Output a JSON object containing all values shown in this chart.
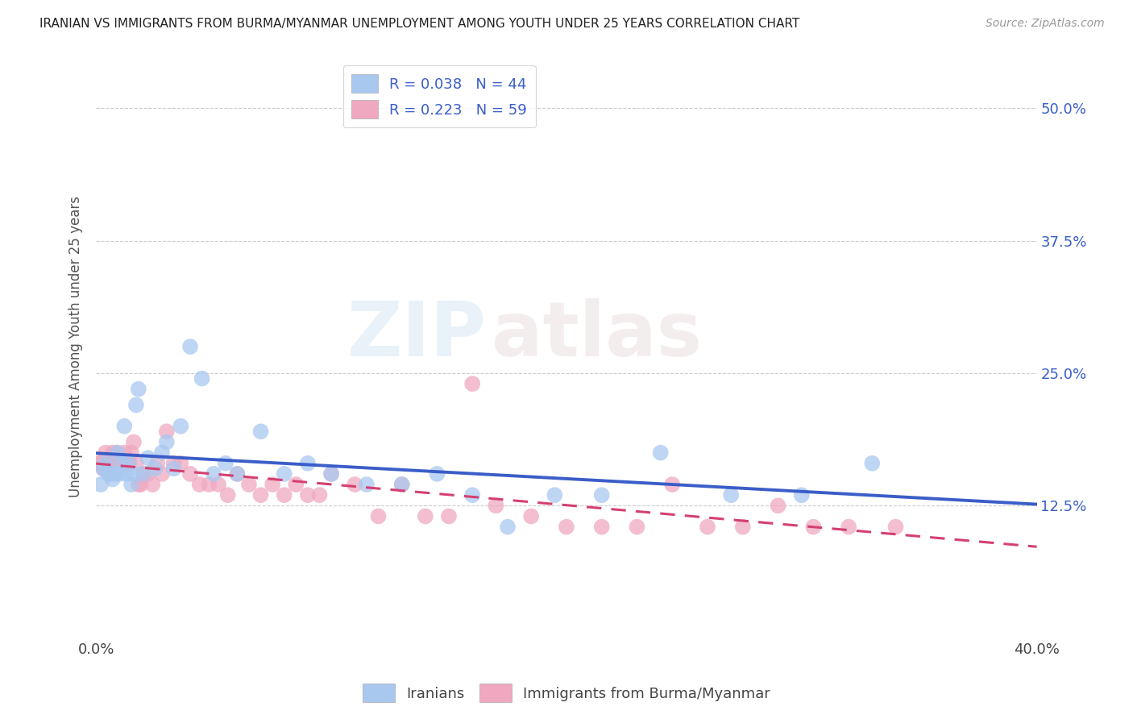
{
  "title": "IRANIAN VS IMMIGRANTS FROM BURMA/MYANMAR UNEMPLOYMENT AMONG YOUTH UNDER 25 YEARS CORRELATION CHART",
  "source": "Source: ZipAtlas.com",
  "ylabel": "Unemployment Among Youth under 25 years",
  "xlim": [
    0.0,
    0.4
  ],
  "ylim": [
    0.0,
    0.55
  ],
  "x_ticks": [
    0.0,
    0.1,
    0.2,
    0.3,
    0.4
  ],
  "x_tick_labels": [
    "0.0%",
    "",
    "",
    "",
    "40.0%"
  ],
  "y_ticks": [
    0.0,
    0.125,
    0.25,
    0.375,
    0.5
  ],
  "y_tick_labels_right": [
    "",
    "12.5%",
    "25.0%",
    "37.5%",
    "50.0%"
  ],
  "grid_color": "#cccccc",
  "background_color": "#ffffff",
  "iranians_color": "#a8c8f0",
  "burma_color": "#f0a8c0",
  "iranians_line_color": "#3a5dc8",
  "burma_line_color": "#d44070",
  "R_iranians": 0.038,
  "N_iranians": 44,
  "R_burma": 0.223,
  "N_burma": 59,
  "legend_label_iranians": "Iranians",
  "legend_label_burma": "Immigrants from Burma/Myanmar",
  "watermark_zip": "ZIP",
  "watermark_atlas": "atlas",
  "iranians_x": [
    0.002,
    0.003,
    0.004,
    0.005,
    0.006,
    0.007,
    0.008,
    0.009,
    0.01,
    0.011,
    0.012,
    0.013,
    0.014,
    0.015,
    0.016,
    0.017,
    0.018,
    0.02,
    0.022,
    0.025,
    0.028,
    0.03,
    0.033,
    0.036,
    0.04,
    0.045,
    0.05,
    0.055,
    0.06,
    0.07,
    0.08,
    0.09,
    0.1,
    0.115,
    0.13,
    0.145,
    0.16,
    0.175,
    0.195,
    0.215,
    0.24,
    0.27,
    0.3,
    0.33
  ],
  "iranians_y": [
    0.145,
    0.16,
    0.165,
    0.155,
    0.155,
    0.15,
    0.155,
    0.175,
    0.155,
    0.165,
    0.2,
    0.155,
    0.165,
    0.145,
    0.155,
    0.22,
    0.235,
    0.155,
    0.17,
    0.16,
    0.175,
    0.185,
    0.16,
    0.2,
    0.275,
    0.245,
    0.155,
    0.165,
    0.155,
    0.195,
    0.155,
    0.165,
    0.155,
    0.145,
    0.145,
    0.155,
    0.135,
    0.105,
    0.135,
    0.135,
    0.175,
    0.135,
    0.135,
    0.165
  ],
  "burma_x": [
    0.001,
    0.002,
    0.003,
    0.004,
    0.005,
    0.006,
    0.007,
    0.008,
    0.009,
    0.01,
    0.011,
    0.012,
    0.013,
    0.014,
    0.015,
    0.016,
    0.017,
    0.018,
    0.019,
    0.02,
    0.022,
    0.024,
    0.026,
    0.028,
    0.03,
    0.033,
    0.036,
    0.04,
    0.044,
    0.048,
    0.052,
    0.056,
    0.06,
    0.065,
    0.07,
    0.075,
    0.08,
    0.085,
    0.09,
    0.095,
    0.1,
    0.11,
    0.12,
    0.13,
    0.14,
    0.15,
    0.16,
    0.17,
    0.185,
    0.2,
    0.215,
    0.23,
    0.245,
    0.26,
    0.275,
    0.29,
    0.305,
    0.32,
    0.34
  ],
  "burma_y": [
    0.165,
    0.165,
    0.16,
    0.175,
    0.165,
    0.165,
    0.175,
    0.165,
    0.175,
    0.165,
    0.165,
    0.175,
    0.165,
    0.165,
    0.175,
    0.185,
    0.165,
    0.145,
    0.145,
    0.155,
    0.155,
    0.145,
    0.165,
    0.155,
    0.195,
    0.165,
    0.165,
    0.155,
    0.145,
    0.145,
    0.145,
    0.135,
    0.155,
    0.145,
    0.135,
    0.145,
    0.135,
    0.145,
    0.135,
    0.135,
    0.155,
    0.145,
    0.115,
    0.145,
    0.115,
    0.115,
    0.24,
    0.125,
    0.115,
    0.105,
    0.105,
    0.105,
    0.145,
    0.105,
    0.105,
    0.125,
    0.105,
    0.105,
    0.105
  ]
}
